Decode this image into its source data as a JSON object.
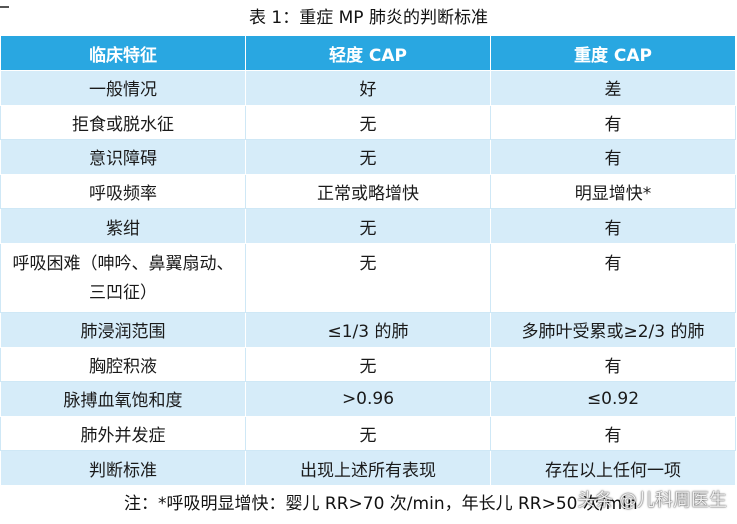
{
  "title": "表 1：重症 MP 肺炎的判断标准",
  "table": {
    "headers": [
      "临床特征",
      "轻度 CAP",
      "重度 CAP"
    ],
    "rows": [
      [
        "一般情况",
        "好",
        "差"
      ],
      [
        "拒食或脱水征",
        "无",
        "有"
      ],
      [
        "意识障碍",
        "无",
        "有"
      ],
      [
        "呼吸频率",
        "正常或略增快",
        "明显增快*"
      ],
      [
        "紫绀",
        "无",
        "有"
      ],
      [
        "呼吸困难（呻吟、鼻翼扇动、三凹征）",
        "无",
        "有"
      ],
      [
        "肺浸润范围",
        "≤1/3 的肺",
        "多肺叶受累或≥2/3 的肺"
      ],
      [
        "胸腔积液",
        "无",
        "有"
      ],
      [
        "脉搏血氧饱和度",
        ">0.96",
        "≤0.92"
      ],
      [
        "肺外并发症",
        "无",
        "有"
      ],
      [
        "判断标准",
        "出现上述所有表现",
        "存在以上任何一项"
      ]
    ]
  },
  "footnote": "注：*呼吸明显增快：婴儿 RR>70 次/min，年长儿 RR>50 次/min",
  "watermark": "头条 @儿科周医生",
  "colors": {
    "header_bg": "#29a7e1",
    "stripe_bg": "#d6ecf9"
  }
}
